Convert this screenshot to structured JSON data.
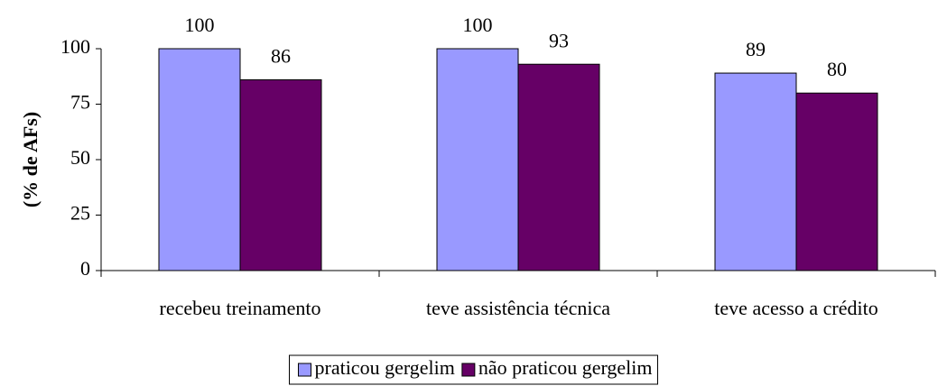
{
  "chart_data": {
    "type": "bar",
    "ylabel": "(% de AFs)",
    "categories": [
      "recebeu treinamento",
      "teve assistência técnica",
      "teve acesso a crédito"
    ],
    "series": [
      {
        "name": "praticou gergelim",
        "color": "#9999ff",
        "values": [
          100,
          100,
          89
        ]
      },
      {
        "name": "não praticou gergelim",
        "color": "#660066",
        "values": [
          86,
          93,
          80
        ]
      }
    ],
    "ylim": [
      0,
      100
    ],
    "yticks": [
      0,
      25,
      50,
      75,
      100
    ],
    "grid": false,
    "legend": "bottom"
  }
}
